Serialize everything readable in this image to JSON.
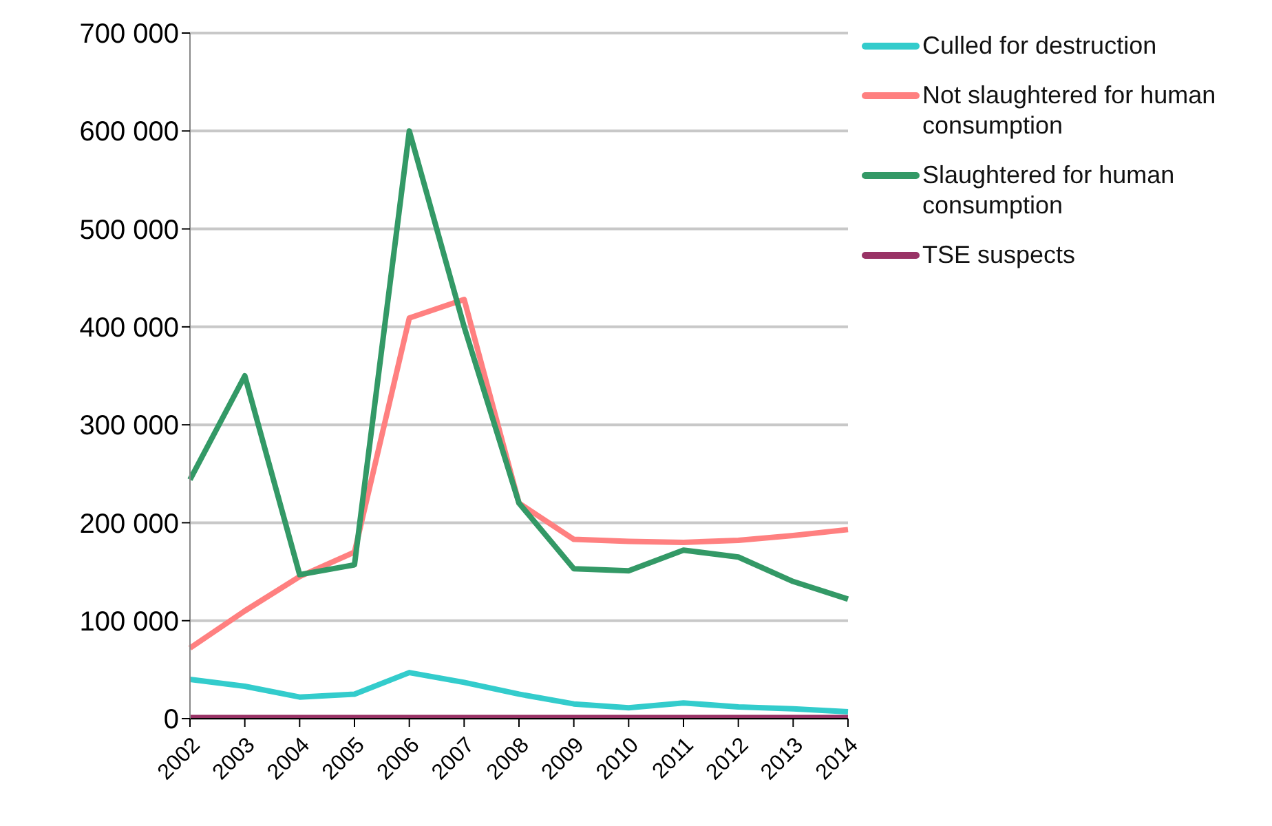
{
  "chart_data": {
    "type": "line",
    "categories": [
      "2002",
      "2003",
      "2004",
      "2005",
      "2006",
      "2007",
      "2008",
      "2009",
      "2010",
      "2011",
      "2012",
      "2013",
      "2014"
    ],
    "series": [
      {
        "name": "Culled for destruction",
        "color": "#33cccc",
        "values": [
          40000,
          33000,
          22000,
          25000,
          47000,
          37000,
          25000,
          15000,
          11000,
          16000,
          12000,
          10000,
          7000
        ]
      },
      {
        "name": "Not slaughtered for human consumption",
        "color": "#ff8080",
        "values": [
          72000,
          110000,
          145000,
          170000,
          409000,
          428000,
          220000,
          183000,
          181000,
          180000,
          182000,
          187000,
          193000
        ]
      },
      {
        "name": "Slaughtered for human consumption",
        "color": "#339966",
        "values": [
          244000,
          350000,
          147000,
          157000,
          600000,
          400000,
          220000,
          153000,
          151000,
          172000,
          165000,
          140000,
          122000
        ]
      },
      {
        "name": "TSE suspects",
        "color": "#993366",
        "values": [
          1000,
          1000,
          1000,
          1000,
          1000,
          1000,
          1000,
          1000,
          1000,
          1000,
          1000,
          1000,
          1000
        ]
      }
    ],
    "ylim": [
      0,
      700000
    ],
    "yticks": [
      0,
      {
        "value": 100000,
        "label": "100 000"
      },
      {
        "value": 200000,
        "label": "200 000"
      },
      {
        "value": 300000,
        "label": "300 000"
      },
      {
        "value": 400000,
        "label": "400 000"
      },
      {
        "value": 500000,
        "label": "500 000"
      },
      {
        "value": 600000,
        "label": "600 000"
      },
      {
        "value": 700000,
        "label": "700 000"
      }
    ],
    "grid": "y",
    "legend": "top right",
    "marker": "none",
    "line_style": "solid"
  }
}
